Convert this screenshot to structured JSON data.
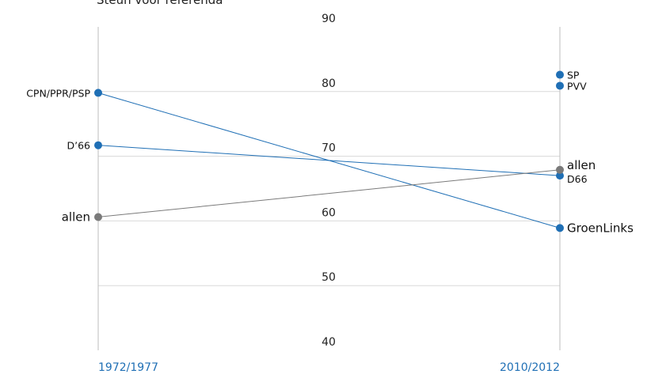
{
  "chart_data": {
    "type": "line",
    "title": "Steun voor referenda",
    "x": [
      "1972/1977",
      "2010/2012"
    ],
    "ylim": [
      40,
      90
    ],
    "yticks": [
      40,
      50,
      60,
      70,
      80,
      90
    ],
    "grid": true,
    "series": [
      {
        "name": "CPN/PPR/PSP",
        "right_label": "GroenLinks",
        "values": [
          79.8,
          58.9
        ],
        "color": "#1f6fb5"
      },
      {
        "name": "D’66",
        "right_label": "D66",
        "values": [
          71.7,
          67.0
        ],
        "color": "#1f6fb5"
      },
      {
        "name": "allen",
        "right_label": "allen",
        "values": [
          60.6,
          67.9
        ],
        "color": "#7a7a7a"
      },
      {
        "name": "",
        "right_label": "SP",
        "values": [
          null,
          82.6
        ],
        "color": "#1f6fb5"
      },
      {
        "name": "",
        "right_label": "PVV",
        "values": [
          null,
          80.9
        ],
        "color": "#1f6fb5"
      }
    ]
  }
}
